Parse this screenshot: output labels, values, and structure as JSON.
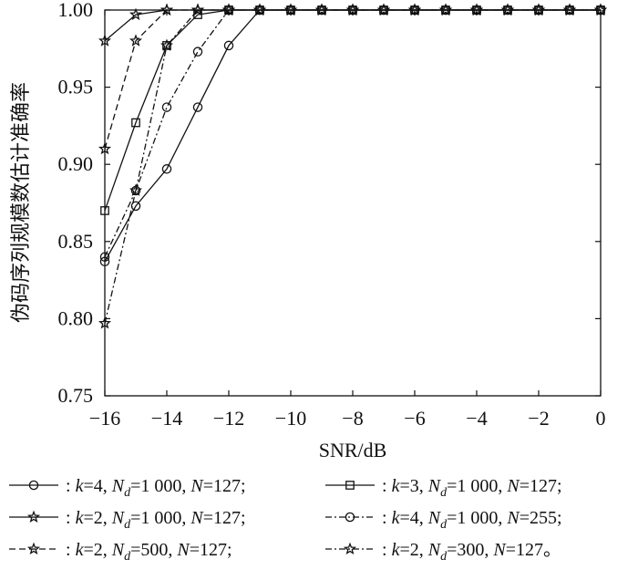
{
  "chart_data": {
    "type": "line",
    "xlabel": "SNR/dB",
    "ylabel": "伪码序列规模数估计准确率",
    "xlim": [
      -16,
      0
    ],
    "ylim": [
      0.75,
      1.0
    ],
    "xticks": [
      "−16",
      "−14",
      "−12",
      "−10",
      "−8",
      "−6",
      "−4",
      "−2",
      "0"
    ],
    "yticks": [
      "0.75",
      "0.80",
      "0.85",
      "0.90",
      "0.95",
      "1.00"
    ],
    "x": [
      -16,
      -15,
      -14,
      -13,
      -12,
      -11,
      -10,
      -9,
      -8,
      -7,
      -6,
      -5,
      -4,
      -3,
      -2,
      -1,
      0
    ],
    "series": [
      {
        "name": "k=4, Nd=1 000, N=127;",
        "label": {
          "k": "4",
          "nd": "1 000",
          "n": "127",
          "end": ";"
        },
        "marker": "circle",
        "dash": "solid",
        "values": [
          0.837,
          0.873,
          0.897,
          0.937,
          0.977,
          1.0,
          1.0,
          1.0,
          1.0,
          1.0,
          1.0,
          1.0,
          1.0,
          1.0,
          1.0,
          1.0,
          1.0
        ]
      },
      {
        "name": "k=3, Nd=1 000, N=127;",
        "label": {
          "k": "3",
          "nd": "1 000",
          "n": "127",
          "end": ";"
        },
        "marker": "square",
        "dash": "solid",
        "values": [
          0.87,
          0.927,
          0.977,
          0.997,
          1.0,
          1.0,
          1.0,
          1.0,
          1.0,
          1.0,
          1.0,
          1.0,
          1.0,
          1.0,
          1.0,
          1.0,
          1.0
        ]
      },
      {
        "name": "k=2, Nd=1 000, N=127;",
        "label": {
          "k": "2",
          "nd": "1 000",
          "n": "127",
          "end": ";"
        },
        "marker": "star",
        "dash": "solid",
        "values": [
          0.98,
          0.997,
          1.0,
          1.0,
          1.0,
          1.0,
          1.0,
          1.0,
          1.0,
          1.0,
          1.0,
          1.0,
          1.0,
          1.0,
          1.0,
          1.0,
          1.0
        ]
      },
      {
        "name": "k=4, Nd=1 000, N=255;",
        "label": {
          "k": "4",
          "nd": "1 000",
          "n": "255",
          "end": ";"
        },
        "marker": "circle",
        "dash": "dashdot",
        "values": [
          0.84,
          0.883,
          0.937,
          0.973,
          1.0,
          1.0,
          1.0,
          1.0,
          1.0,
          1.0,
          1.0,
          1.0,
          1.0,
          1.0,
          1.0,
          1.0,
          1.0
        ]
      },
      {
        "name": "k=2, Nd=500, N=127;",
        "label": {
          "k": "2",
          "nd": "500",
          "n": "127",
          "end": ";"
        },
        "marker": "star",
        "dash": "dashed",
        "values": [
          0.91,
          0.98,
          1.0,
          1.0,
          1.0,
          1.0,
          1.0,
          1.0,
          1.0,
          1.0,
          1.0,
          1.0,
          1.0,
          1.0,
          1.0,
          1.0,
          1.0
        ]
      },
      {
        "name": "k=2, Nd=300, N=127。",
        "label": {
          "k": "2",
          "nd": "300",
          "n": "127",
          "end": "。"
        },
        "marker": "star",
        "dash": "dashdot",
        "values": [
          0.797,
          0.883,
          0.977,
          1.0,
          1.0,
          1.0,
          1.0,
          1.0,
          1.0,
          1.0,
          1.0,
          1.0,
          1.0,
          1.0,
          1.0,
          1.0,
          1.0
        ]
      }
    ],
    "grid": false,
    "legend_position": "bottom"
  }
}
